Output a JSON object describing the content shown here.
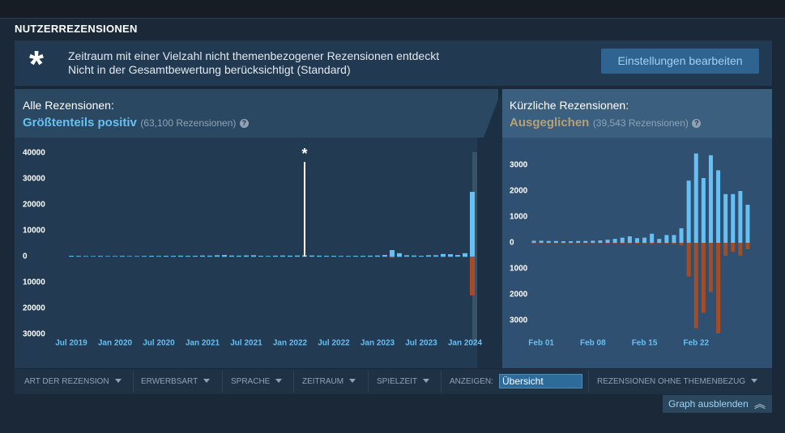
{
  "header": {
    "title": "NUTZERREZENSIONEN"
  },
  "banner": {
    "icon": "*",
    "line1": "Zeitraum mit einer Vielzahl nicht themenbezogener Rezensionen entdeckt",
    "line2": "Nicht in der Gesamtbewertung berücksichtigt (Standard)",
    "button": "Einstellungen bearbeiten"
  },
  "overall": {
    "label": "Alle Rezensionen:",
    "rating": "Größtenteils positiv",
    "count": "(63,100 Rezensionen)",
    "help": "?"
  },
  "recent": {
    "label": "Kürzliche Rezensionen:",
    "rating": "Ausgeglichen",
    "count": "(39,543 Rezensionen)",
    "help": "?"
  },
  "filters": {
    "items": [
      "ART DER REZENSION",
      "ERWERBSART",
      "SPRACHE",
      "ZEITRAUM",
      "SPIELZEIT"
    ],
    "display_label": "ANZEIGEN:",
    "display_value": "Übersicht",
    "offtopic": "REZENSIONEN OHNE THEMENBEZUG"
  },
  "hide_button": "Graph ausblenden",
  "chart_data": [
    {
      "type": "bar",
      "annotation": "*",
      "categories": [
        "Jul 2019",
        null,
        null,
        null,
        null,
        null,
        "Jan 2020",
        null,
        null,
        null,
        null,
        null,
        "Jul 2020",
        null,
        null,
        null,
        null,
        null,
        "Jan 2021",
        null,
        null,
        null,
        null,
        null,
        "Jul 2021",
        null,
        null,
        null,
        null,
        null,
        "Jan 2022",
        null,
        null,
        null,
        null,
        null,
        "Jul 2022",
        null,
        null,
        null,
        null,
        null,
        "Jan 2023",
        null,
        null,
        null,
        null,
        null,
        "Jul 2023",
        null,
        null,
        null,
        null,
        null,
        "Jan 2024",
        null
      ],
      "series": [
        {
          "color": "#66c0f4",
          "values": [
            300,
            250,
            200,
            200,
            250,
            200,
            200,
            250,
            200,
            200,
            250,
            300,
            250,
            300,
            300,
            350,
            300,
            300,
            400,
            350,
            500,
            600,
            400,
            350,
            450,
            500,
            300,
            250,
            350,
            400,
            350,
            400,
            500,
            400,
            350,
            300,
            300,
            250,
            250,
            300,
            300,
            350,
            400,
            600,
            2500,
            1300,
            500,
            400,
            300,
            500,
            500,
            1000,
            900,
            600,
            1300,
            25000
          ]
        },
        {
          "color": "#a34c25",
          "values": [
            -100,
            -100,
            -80,
            -80,
            -100,
            -80,
            -80,
            -100,
            -80,
            -80,
            -100,
            -120,
            -100,
            -120,
            -120,
            -150,
            -120,
            -120,
            -150,
            -150,
            -200,
            -250,
            -150,
            -150,
            -200,
            -200,
            -120,
            -100,
            -150,
            -150,
            -150,
            -150,
            -200,
            -150,
            -150,
            -120,
            -120,
            -100,
            -100,
            -120,
            -120,
            -150,
            -150,
            -200,
            -500,
            -300,
            -150,
            -150,
            -100,
            -150,
            -150,
            -250,
            -200,
            -150,
            -300,
            -15000
          ]
        },
        {
          "color": "#ffffff",
          "values": [
            null,
            null,
            null,
            null,
            null,
            null,
            null,
            null,
            null,
            null,
            null,
            null,
            null,
            null,
            null,
            null,
            null,
            null,
            null,
            null,
            null,
            null,
            null,
            null,
            null,
            null,
            null,
            null,
            null,
            null,
            null,
            null,
            36500,
            null,
            null,
            null,
            null,
            null,
            null,
            null,
            null,
            null,
            null,
            null,
            null,
            null,
            null,
            null,
            null,
            null,
            null,
            null,
            null,
            null,
            null,
            null
          ]
        }
      ],
      "ylim": [
        -34000,
        43000
      ],
      "yticks": [
        40000,
        30000,
        20000,
        10000,
        0,
        {
          "value": -10000,
          "label": "10000"
        },
        {
          "value": -20000,
          "label": "20000"
        },
        {
          "value": -30000,
          "label": "30000"
        }
      ]
    },
    {
      "type": "bar",
      "categories": [
        null,
        "Feb 01",
        null,
        null,
        null,
        null,
        null,
        null,
        "Feb 08",
        null,
        null,
        null,
        null,
        null,
        null,
        "Feb 15",
        null,
        null,
        null,
        null,
        null,
        null,
        "Feb 22",
        null,
        null,
        null,
        null,
        null,
        null,
        null
      ],
      "series": [
        {
          "color": "#66c0f4",
          "values": [
            80,
            80,
            70,
            70,
            60,
            60,
            70,
            70,
            80,
            90,
            120,
            150,
            200,
            250,
            180,
            200,
            350,
            150,
            300,
            300,
            560,
            2400,
            3450,
            2500,
            3380,
            2800,
            1880,
            1880,
            2000,
            1470
          ]
        },
        {
          "color": "#a34c25",
          "values": [
            -20,
            -20,
            -20,
            -20,
            -20,
            -20,
            -20,
            -20,
            -20,
            -20,
            -30,
            -30,
            -30,
            -40,
            -30,
            -30,
            -50,
            -30,
            -40,
            -50,
            -100,
            -1300,
            -3300,
            -2700,
            -1900,
            -3500,
            -500,
            -350,
            -500,
            -250
          ]
        }
      ],
      "ylim": [
        -3800,
        3600
      ],
      "yticks": [
        3000,
        2000,
        1000,
        0,
        {
          "value": -1000,
          "label": "1000"
        },
        {
          "value": -2000,
          "label": "2000"
        },
        {
          "value": -3000,
          "label": "3000"
        }
      ]
    }
  ]
}
